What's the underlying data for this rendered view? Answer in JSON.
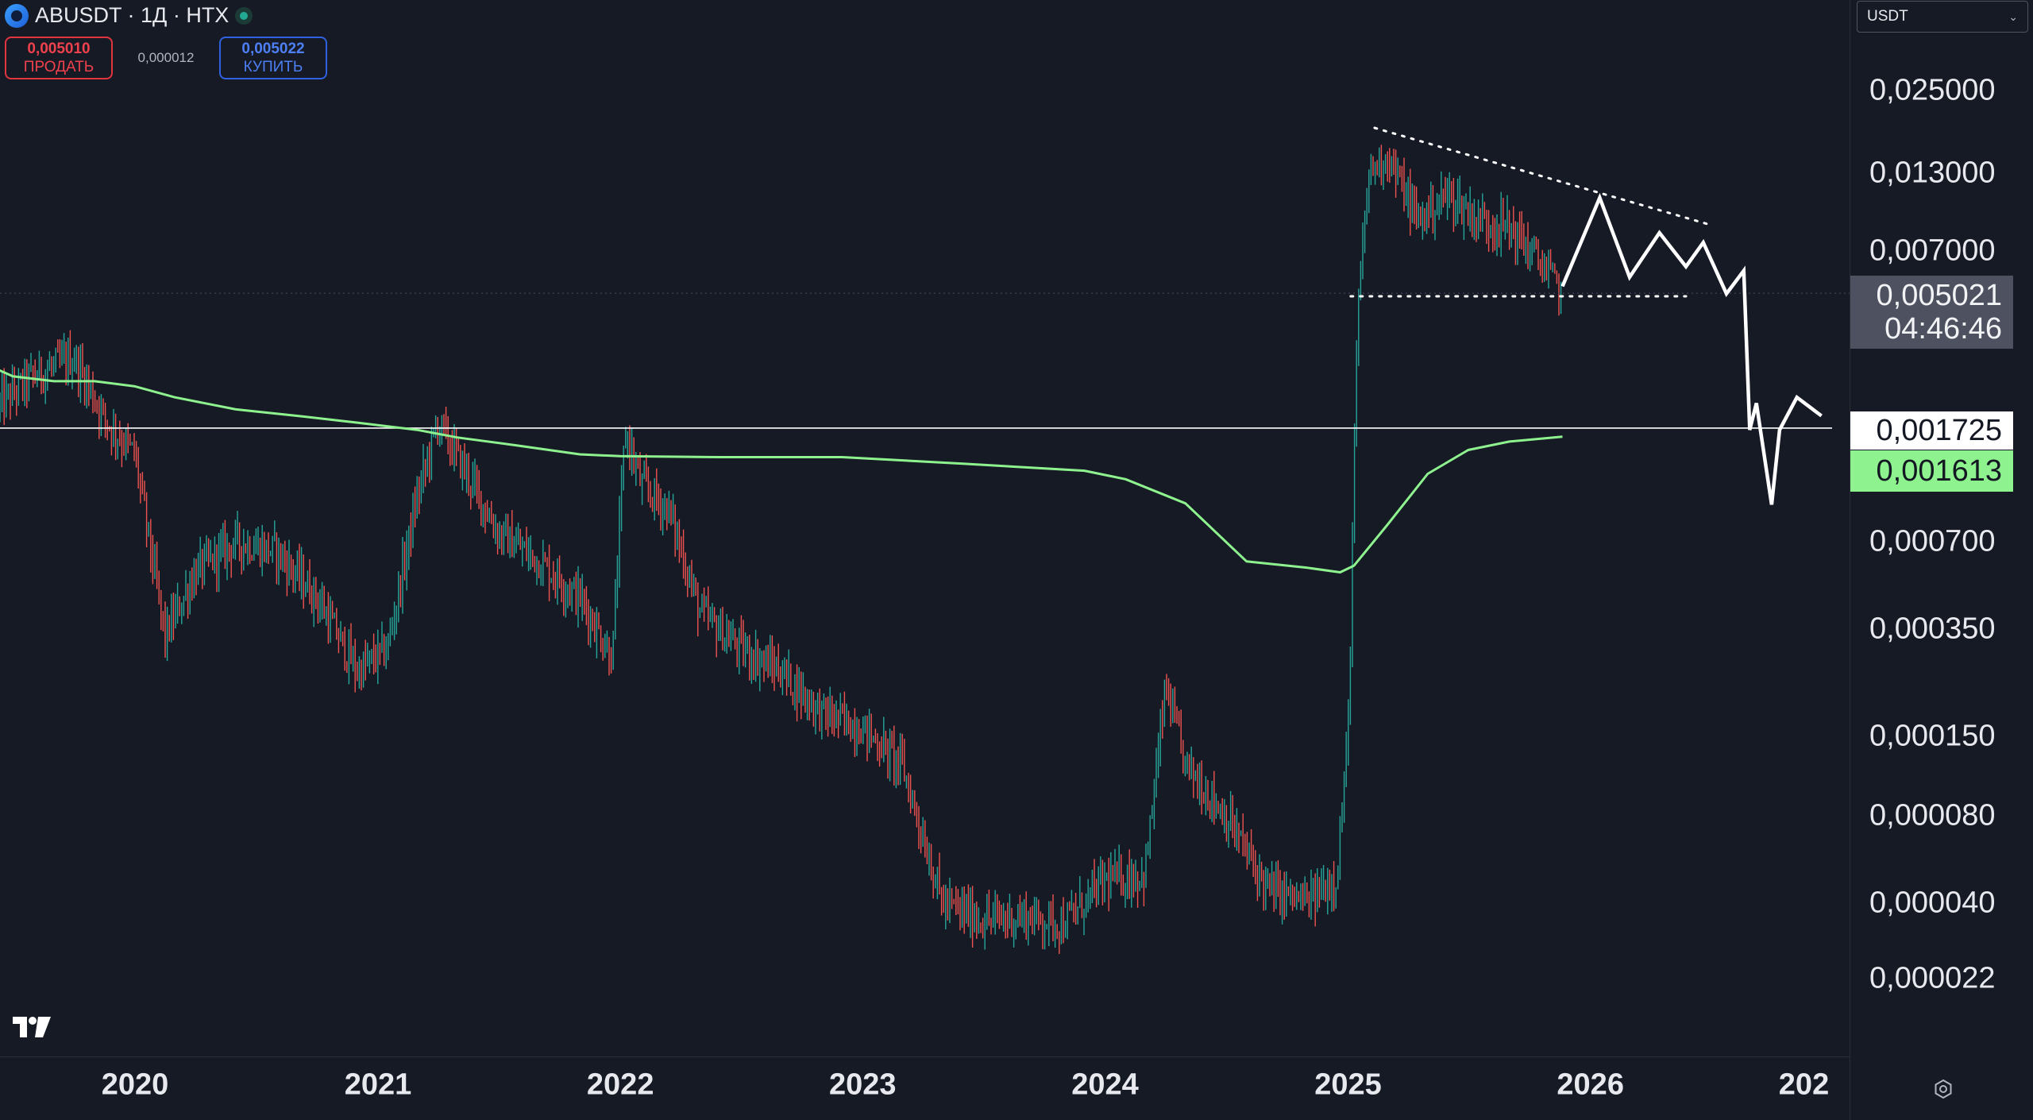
{
  "header": {
    "symbol": "ABUSDT · 1Д · HTX",
    "sell_price": "0,005010",
    "sell_label": "ПРОДАТЬ",
    "spread": "0,000012",
    "buy_price": "0,005022",
    "buy_label": "КУПИТЬ"
  },
  "currency_select": {
    "value": "USDT"
  },
  "price_labels": {
    "last_price": "0,005021",
    "countdown": "04:46:46",
    "horizontal_line": "0,001725",
    "moving_average": "0,001613"
  },
  "colors": {
    "background": "#161a25",
    "candle_up": "#26a69a",
    "candle_down": "#ef5350",
    "moving_average": "#8ef28f",
    "drawing": "#ffffff"
  },
  "icons": {
    "logo": "tradingview-logo-icon",
    "settings": "settings-gear-icon",
    "exchange": "symbol-logo-icon"
  },
  "chart_data": {
    "type": "line",
    "scale": "log",
    "title": "ABUSDT · 1Д · HTX",
    "xlabel": "",
    "ylabel": "",
    "x_ticks": [
      "2020",
      "2021",
      "2022",
      "2023",
      "2024",
      "2025",
      "2026",
      "202"
    ],
    "y_ticks": [
      "0,025000",
      "0,013000",
      "0,007000",
      "0,005021",
      "0,001725",
      "0,001613",
      "0,000700",
      "0,000350",
      "0,000150",
      "0,000080",
      "0,000040",
      "0,000022"
    ],
    "ylim": [
      1.4e-05,
      0.04
    ],
    "grid": false,
    "series": [
      {
        "kind": "price",
        "x": [
          "2019-06-01",
          "2019-08-01",
          "2019-10-01",
          "2019-11-20",
          "2020-01-01",
          "2020-02-15",
          "2020-04-01",
          "2020-06-01",
          "2020-08-01",
          "2020-10-01",
          "2020-12-01",
          "2021-01-15",
          "2021-03-01",
          "2021-04-01",
          "2021-05-15",
          "2021-07-01",
          "2021-09-01",
          "2021-11-01",
          "2021-12-20",
          "2022-01-08",
          "2022-02-01",
          "2022-03-15",
          "2022-05-01",
          "2022-07-01",
          "2022-09-01",
          "2022-11-01",
          "2023-01-01",
          "2023-03-01",
          "2023-05-01",
          "2023-07-01",
          "2023-09-01",
          "2023-11-01",
          "2024-01-01",
          "2024-03-01",
          "2024-04-01",
          "2024-05-01",
          "2024-07-01",
          "2024-09-01",
          "2024-11-01",
          "2024-12-15",
          "2025-01-01",
          "2025-01-15",
          "2025-02-01",
          "2025-03-01",
          "2025-04-15",
          "2025-06-01",
          "2025-07-15",
          "2025-09-01",
          "2025-10-15",
          "2025-11-20"
        ],
        "y": [
          0.002,
          0.0026,
          0.003,
          0.0018,
          0.0014,
          0.00033,
          0.00055,
          0.0007,
          0.00065,
          0.00045,
          0.00025,
          0.0003,
          0.001,
          0.0018,
          0.0012,
          0.00075,
          0.0006,
          0.00045,
          0.00028,
          0.0017,
          0.0011,
          0.0009,
          0.0004,
          0.0003,
          0.00025,
          0.00018,
          0.00016,
          0.00012,
          4e-05,
          3.5e-05,
          3.6e-05,
          3.4e-05,
          4.8e-05,
          5e-05,
          0.00022,
          0.00012,
          8e-05,
          4.5e-05,
          4e-05,
          5e-05,
          0.00015,
          0.004,
          0.013,
          0.015,
          0.009,
          0.011,
          0.009,
          0.0085,
          0.0065,
          0.005
        ]
      },
      {
        "kind": "moving_average",
        "x": [
          "2019-05-01",
          "2019-07-01",
          "2019-09-01",
          "2019-11-01",
          "2020-01-01",
          "2020-03-01",
          "2020-06-01",
          "2020-09-01",
          "2020-12-01",
          "2021-03-01",
          "2021-05-01",
          "2021-08-01",
          "2021-11-01",
          "2022-01-01",
          "2022-06-01",
          "2022-12-01",
          "2023-06-01",
          "2023-12-01",
          "2024-02-01",
          "2024-05-01",
          "2024-08-01",
          "2024-11-01",
          "2024-12-20",
          "2025-01-10",
          "2025-03-01",
          "2025-05-01",
          "2025-07-01",
          "2025-09-01",
          "2025-11-20"
        ],
        "y": [
          0.003,
          0.0026,
          0.0025,
          0.0025,
          0.0024,
          0.0022,
          0.002,
          0.0019,
          0.0018,
          0.0017,
          0.0016,
          0.0015,
          0.0014,
          0.00138,
          0.00137,
          0.00137,
          0.0013,
          0.00123,
          0.00115,
          0.00095,
          0.0006,
          0.00057,
          0.00055,
          0.00058,
          0.0008,
          0.0012,
          0.00145,
          0.00155,
          0.00161
        ]
      },
      {
        "kind": "drawing_projection",
        "x": [
          "2025-11-20",
          "2026-01-15",
          "2026-03-01",
          "2026-04-15",
          "2026-05-25",
          "2026-06-20",
          "2026-07-25",
          "2026-08-20",
          "2026-08-29",
          "2026-09-08",
          "2026-10-01",
          "2026-10-13",
          "2026-11-08",
          "2026-12-15"
        ],
        "y": [
          0.0053,
          0.0107,
          0.0057,
          0.0081,
          0.0062,
          0.0075,
          0.005,
          0.006,
          0.0017,
          0.0021,
          0.00094,
          0.0017,
          0.0022,
          0.0019
        ]
      },
      {
        "kind": "trendline_resistance",
        "x": [
          "2025-02-10",
          "2026-06-25"
        ],
        "y": [
          0.0186,
          0.0087
        ]
      },
      {
        "kind": "support_level",
        "x": [
          "2025-01-05",
          "2026-05-25"
        ],
        "y": [
          0.0049,
          0.0049
        ]
      },
      {
        "kind": "horizontal_level",
        "x": [
          "2019-05-01",
          "2026-12-31"
        ],
        "y": [
          0.001725,
          0.001725
        ]
      }
    ]
  }
}
